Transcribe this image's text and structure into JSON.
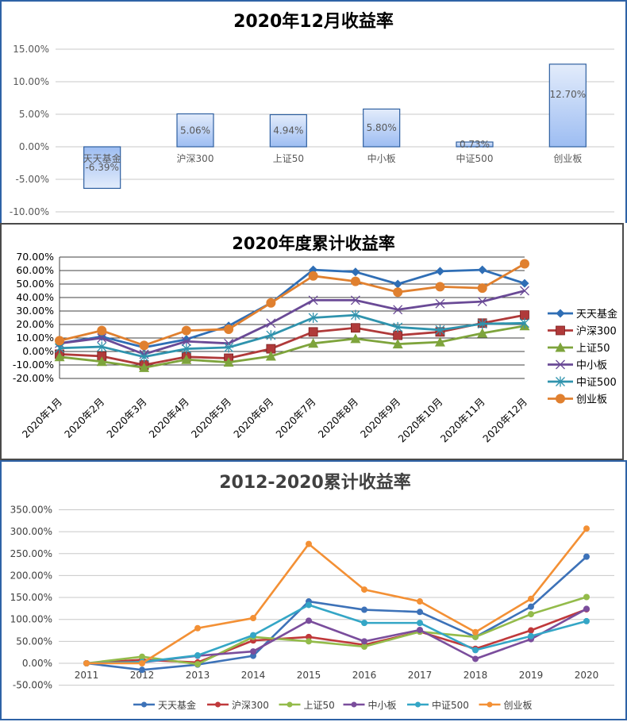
{
  "chart_data": [
    {
      "type": "bar",
      "title": "2020年12月收益率",
      "categories": [
        "天天基金",
        "沪深300",
        "上证50",
        "中小板",
        "中证500",
        "创业板"
      ],
      "values": [
        -6.39,
        5.06,
        4.94,
        5.8,
        0.73,
        12.7
      ],
      "value_labels": [
        "-6.39%",
        "5.06%",
        "4.94%",
        "5.80%",
        "0.73%",
        "12.70%"
      ],
      "xlabel": "",
      "ylabel": "",
      "ylim": [
        -10,
        15
      ],
      "yticks": [
        "15.00%",
        "10.00%",
        "5.00%",
        "0.00%",
        "-5.00%",
        "-10.00%"
      ],
      "yticks_values": [
        15,
        10,
        5,
        0,
        -5,
        -10
      ],
      "grid": true,
      "legend": "none"
    },
    {
      "type": "line",
      "title": "2020年度累计收益率",
      "categories": [
        "2020年1月",
        "2020年2月",
        "2020年3月",
        "2020年4月",
        "2020年5月",
        "2020年6月",
        "2020年7月",
        "2020年8月",
        "2020年9月",
        "2020年10月",
        "2020年11月",
        "2020年12月"
      ],
      "series": [
        {
          "name": "天天基金",
          "color": "#2f6eb5",
          "marker": "diamond",
          "values": [
            6,
            11,
            3,
            9,
            19,
            36,
            60.5,
            59,
            50,
            59.5,
            60.5,
            50.5
          ]
        },
        {
          "name": "沪深300",
          "color": "#b03a3a",
          "marker": "square",
          "values": [
            -2,
            -3.5,
            -10,
            -4,
            -5,
            2,
            14.5,
            17.5,
            12,
            14.5,
            21,
            27
          ]
        },
        {
          "name": "上证50",
          "color": "#7ea43c",
          "marker": "triangle",
          "values": [
            -4,
            -7.5,
            -12,
            -6,
            -8,
            -3.5,
            6,
            9.5,
            5.5,
            7,
            13.5,
            19
          ]
        },
        {
          "name": "中小板",
          "color": "#6a4a96",
          "marker": "x",
          "values": [
            6,
            10,
            -2,
            7.5,
            6,
            21,
            38,
            38,
            31,
            35.5,
            37,
            45
          ]
        },
        {
          "name": "中证500",
          "color": "#2f93ad",
          "marker": "star",
          "values": [
            2.5,
            3.5,
            -4,
            2,
            3,
            12,
            25,
            27,
            18,
            16,
            20.5,
            21
          ]
        },
        {
          "name": "创业板",
          "color": "#e0802f",
          "marker": "circle",
          "values": [
            8,
            15.5,
            4.5,
            15.5,
            16.5,
            36,
            56,
            52,
            44,
            48,
            47,
            65
          ]
        }
      ],
      "xlabel": "",
      "ylabel": "",
      "ylim": [
        -20,
        70
      ],
      "yticks": [
        "70.00%",
        "60.00%",
        "50.00%",
        "40.00%",
        "30.00%",
        "20.00%",
        "10.00%",
        "0.00%",
        "-10.00%",
        "-20.00%"
      ],
      "yticks_values": [
        70,
        60,
        50,
        40,
        30,
        20,
        10,
        0,
        -10,
        -20
      ],
      "grid": true,
      "legend": "right"
    },
    {
      "type": "line",
      "title": "2012-2020累计收益率",
      "categories": [
        "2011",
        "2012",
        "2013",
        "2014",
        "2015",
        "2016",
        "2017",
        "2018",
        "2019",
        "2020"
      ],
      "series": [
        {
          "name": "天天基金",
          "color": "#3d72b8",
          "values": [
            0,
            -15,
            -3,
            17,
            141,
            122,
            117,
            60,
            129,
            243
          ]
        },
        {
          "name": "沪深300",
          "color": "#c0393b",
          "values": [
            0,
            8,
            2,
            52,
            60,
            42,
            72,
            33,
            75,
            123
          ]
        },
        {
          "name": "上证50",
          "color": "#93bb4a",
          "values": [
            0,
            15,
            -2,
            60,
            50,
            38,
            72,
            60,
            112,
            151
          ]
        },
        {
          "name": "中小板",
          "color": "#7a4d9c",
          "values": [
            0,
            2,
            17,
            27,
            97,
            50,
            76,
            10,
            55,
            124
          ]
        },
        {
          "name": "中证500",
          "color": "#34a6c6",
          "values": [
            0,
            3,
            18,
            64,
            133,
            92,
            92,
            30,
            62,
            96
          ]
        },
        {
          "name": "创业板",
          "color": "#f39035",
          "values": [
            0,
            0,
            80,
            103,
            272,
            168,
            141,
            71,
            147,
            307
          ]
        }
      ],
      "xlabel": "",
      "ylabel": "",
      "ylim": [
        -50,
        350
      ],
      "yticks": [
        "350.00%",
        "300.00%",
        "250.00%",
        "200.00%",
        "150.00%",
        "100.00%",
        "50.00%",
        "0.00%",
        "-50.00%"
      ],
      "yticks_values": [
        350,
        300,
        250,
        200,
        150,
        100,
        50,
        0,
        -50
      ],
      "grid": true,
      "legend": "bottom"
    }
  ]
}
